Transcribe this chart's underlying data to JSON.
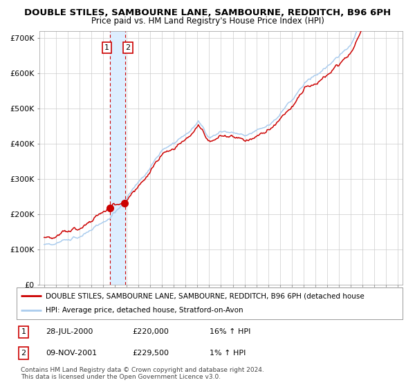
{
  "title": "DOUBLE STILES, SAMBOURNE LANE, SAMBOURNE, REDDITCH, B96 6PH",
  "subtitle": "Price paid vs. HM Land Registry's House Price Index (HPI)",
  "title_fontsize": 9.5,
  "subtitle_fontsize": 8.5,
  "legend_line1": "DOUBLE STILES, SAMBOURNE LANE, SAMBOURNE, REDDITCH, B96 6PH (detached house",
  "legend_line2": "HPI: Average price, detached house, Stratford-on-Avon",
  "table_rows": [
    {
      "num": "1",
      "date": "28-JUL-2000",
      "price": "£220,000",
      "hpi": "16% ↑ HPI"
    },
    {
      "num": "2",
      "date": "09-NOV-2001",
      "price": "£229,500",
      "hpi": "1% ↑ HPI"
    }
  ],
  "footnote": "Contains HM Land Registry data © Crown copyright and database right 2024.\nThis data is licensed under the Open Government Licence v3.0.",
  "sale1_date_num": 2000.57,
  "sale1_price": 220000,
  "sale2_date_num": 2001.86,
  "sale2_price": 229500,
  "hpi_color": "#aaccee",
  "price_color": "#cc0000",
  "dot_color": "#cc0000",
  "vline_color": "#cc0000",
  "shade_color": "#ddeeff",
  "bg_color": "#ffffff",
  "plot_bg": "#ffffff",
  "grid_color": "#cccccc",
  "ylim": [
    0,
    720000
  ],
  "yticks": [
    0,
    100000,
    200000,
    300000,
    400000,
    500000,
    600000,
    700000
  ],
  "ytick_labels": [
    "£0",
    "£100K",
    "£200K",
    "£300K",
    "£400K",
    "£500K",
    "£600K",
    "£700K"
  ]
}
